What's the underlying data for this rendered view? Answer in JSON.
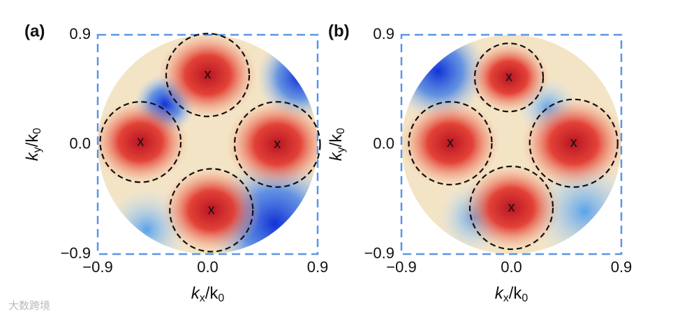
{
  "panels": [
    {
      "label": "(a)",
      "marker": "x",
      "xlim": [
        -0.9,
        0.9
      ],
      "ylim": [
        -0.9,
        0.9
      ],
      "xticks": [
        {
          "value": -0.9,
          "label": "−0.9"
        },
        {
          "value": 0,
          "label": "0.0"
        },
        0.9
      ],
      "yticks": [
        {
          "value": -0.9,
          "label": "−0.9"
        },
        {
          "value": 0,
          "label": "0.0"
        },
        0.9
      ],
      "xlabel": [
        "k",
        "x",
        "/k",
        "0"
      ],
      "ylabel": [
        "k",
        "y",
        "/k",
        "0"
      ],
      "beams": [
        {
          "x": 0.0,
          "y": 0.57,
          "r": 0.34
        },
        {
          "x": 0.57,
          "y": 0.0,
          "r": 0.35
        },
        {
          "x": -0.55,
          "y": 0.02,
          "r": 0.33
        },
        {
          "x": 0.03,
          "y": -0.54,
          "r": 0.34
        }
      ]
    },
    {
      "label": "(b)",
      "marker": "x",
      "xlim": [
        -0.9,
        0.9
      ],
      "ylim": [
        -0.9,
        0.9
      ],
      "xticks": [
        {
          "value": -0.9,
          "label": "−0.9"
        },
        {
          "value": 0,
          "label": "0.0"
        },
        0.9
      ],
      "yticks": [
        {
          "value": -0.9,
          "label": "−0.9"
        },
        {
          "value": 0,
          "label": "0.0"
        },
        0.9
      ],
      "xlabel": [
        "k",
        "x",
        "/k",
        "0"
      ],
      "ylabel": [
        "k",
        "y",
        "/k",
        "0"
      ],
      "beams": [
        {
          "x": -0.02,
          "y": 0.55,
          "r": 0.28
        },
        {
          "x": 0.51,
          "y": 0.01,
          "r": 0.36
        },
        {
          "x": -0.5,
          "y": 0.01,
          "r": 0.34
        },
        {
          "x": 0.0,
          "y": -0.52,
          "r": 0.34
        }
      ]
    }
  ],
  "watermark": "大数跨境"
}
